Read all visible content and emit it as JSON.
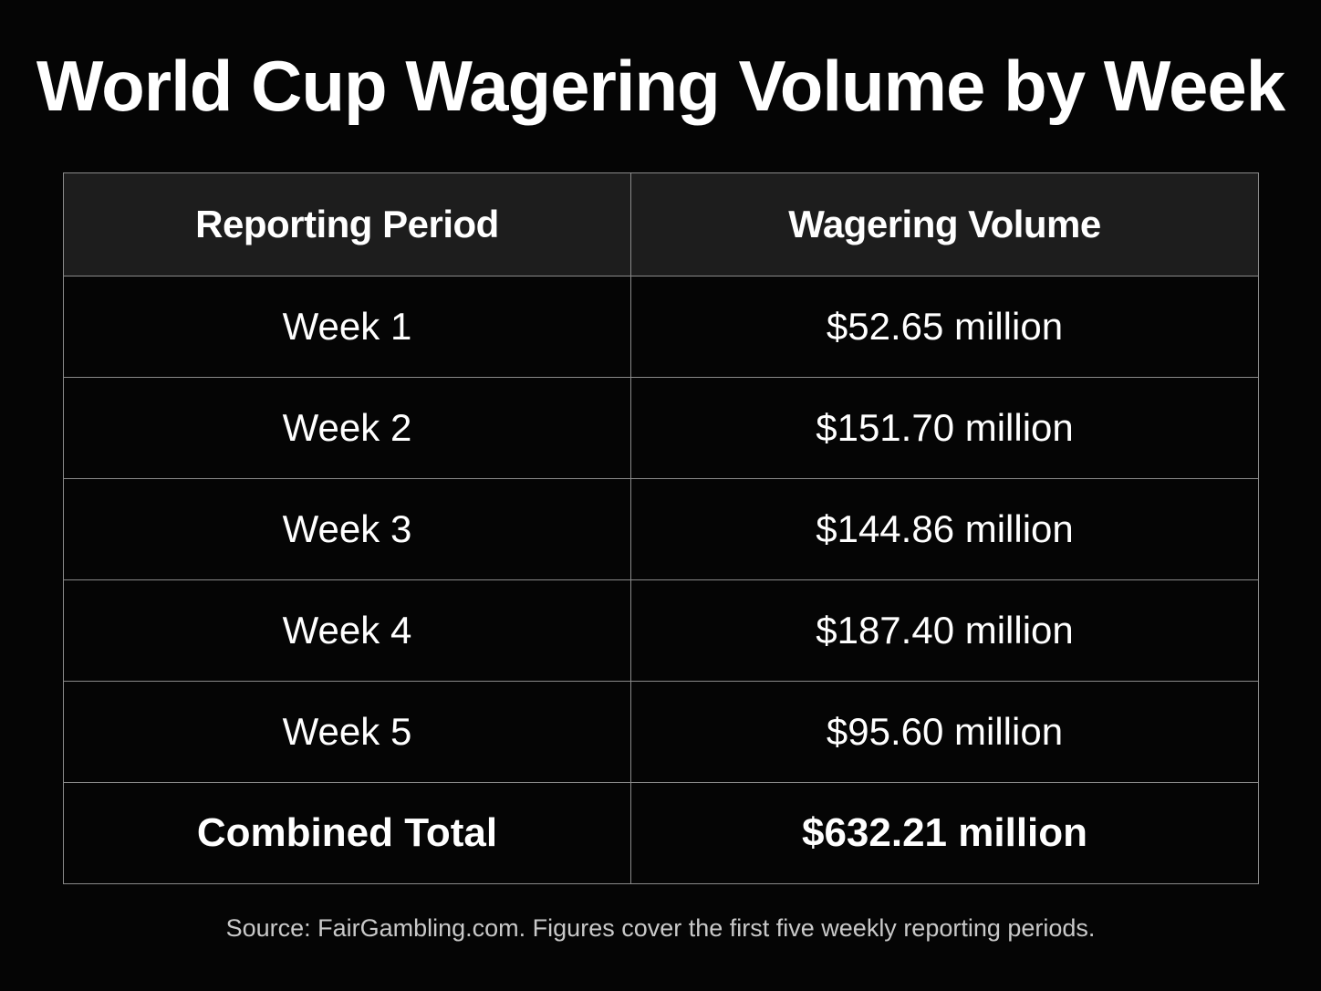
{
  "title": "World Cup Wagering Volume by Week",
  "source_note": "Source: FairGambling.com. Figures cover the first five weekly reporting periods.",
  "colors": {
    "background": "#050505",
    "header_background": "#1d1d1d",
    "text": "#ffffff",
    "grid": "#8a8a8a",
    "footnote": "#c9c9c9"
  },
  "chart_data": {
    "type": "table",
    "title": "World Cup Wagering Volume by Week",
    "columns": [
      "Reporting Period",
      "Wagering Volume"
    ],
    "rows": [
      {
        "period": "Week 1",
        "volume": "$52.65 million",
        "value_millions": 52.65
      },
      {
        "period": "Week 2",
        "volume": "$151.70 million",
        "value_millions": 151.7
      },
      {
        "period": "Week 3",
        "volume": "$144.86 million",
        "value_millions": 144.86
      },
      {
        "period": "Week 4",
        "volume": "$187.40 million",
        "value_millions": 187.4
      },
      {
        "period": "Week 5",
        "volume": "$95.60 million",
        "value_millions": 95.6
      }
    ],
    "total": {
      "label": "Combined Total",
      "volume": "$632.21 million",
      "value_millions": 632.21
    }
  }
}
